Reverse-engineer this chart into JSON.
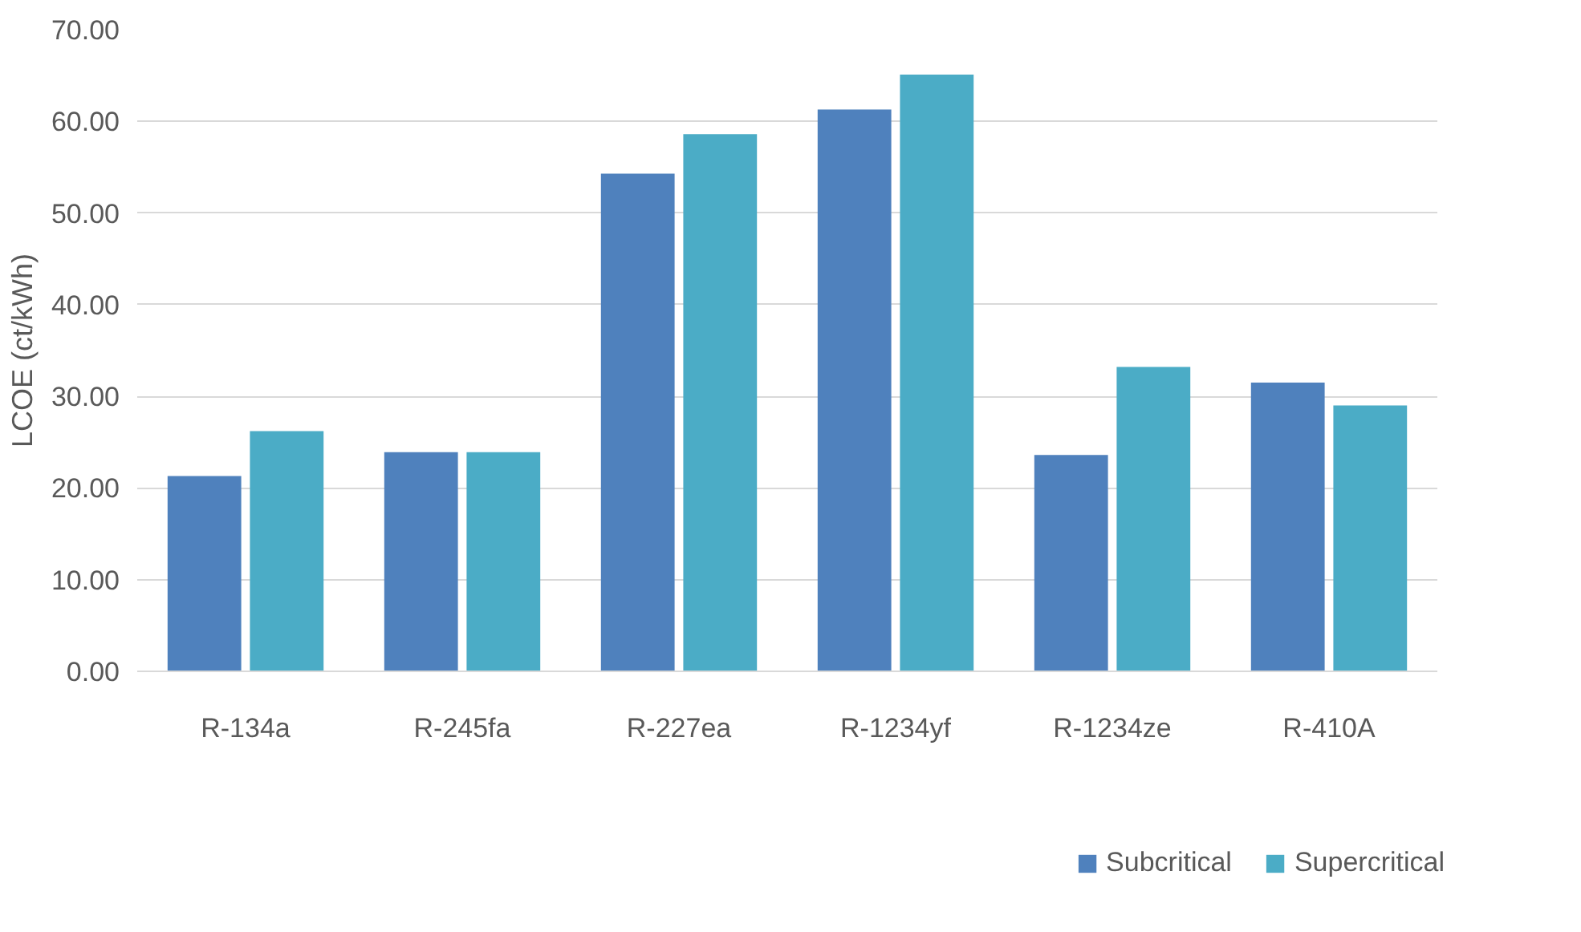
{
  "chart_data": {
    "type": "bar",
    "ylabel": "LCOE (ct/kWh)",
    "categories": [
      "R-134a",
      "R-245fa",
      "R-227ea",
      "R-1234yf",
      "R-1234ze",
      "R-410A"
    ],
    "series": [
      {
        "name": "Subcritical",
        "color": "#4f81bd",
        "values": [
          21.3,
          23.9,
          54.3,
          61.3,
          23.6,
          31.5
        ]
      },
      {
        "name": "Supercritical",
        "color": "#4bacc6",
        "values": [
          26.2,
          23.9,
          58.6,
          65.1,
          33.2,
          29.0
        ]
      }
    ],
    "ylim": [
      0,
      70
    ],
    "yticks": [
      {
        "value": 0,
        "label": "0.00"
      },
      {
        "value": 10,
        "label": "10.00"
      },
      {
        "value": 20,
        "label": "20.00"
      },
      {
        "value": 30,
        "label": "30.00"
      },
      {
        "value": 40,
        "label": "40.00"
      },
      {
        "value": 50,
        "label": "50.00"
      },
      {
        "value": 60,
        "label": "60.00"
      },
      {
        "value": 70,
        "label": "70.00"
      }
    ],
    "grid": "y",
    "legend": "bottom"
  }
}
